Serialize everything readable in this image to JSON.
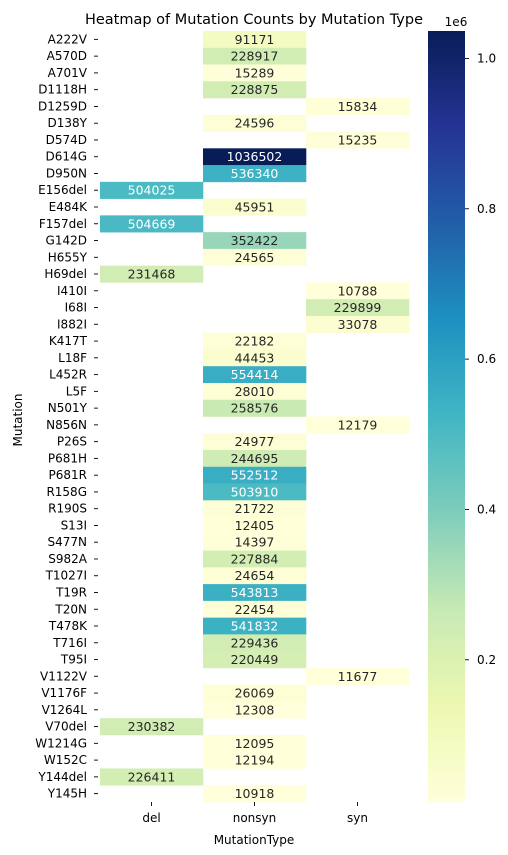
{
  "chart_data": {
    "type": "heatmap",
    "title": "Heatmap of Mutation Counts by Mutation Type",
    "xlabel": "MutationType",
    "ylabel": "Mutation",
    "x_categories": [
      "del",
      "nonsyn",
      "syn"
    ],
    "colormap": "YlGnBu",
    "colorbar": {
      "offset_label": "1e6",
      "ticks": [
        0.2,
        0.4,
        0.6,
        0.8,
        1.0
      ],
      "tick_labels": [
        "0.2",
        "0.4",
        "0.6",
        "0.8",
        "1.0"
      ]
    },
    "rows": [
      {
        "label": "A222V",
        "values": [
          null,
          91171,
          null
        ]
      },
      {
        "label": "A570D",
        "values": [
          null,
          228917,
          null
        ]
      },
      {
        "label": "A701V",
        "values": [
          null,
          15289,
          null
        ]
      },
      {
        "label": "D1118H",
        "values": [
          null,
          228875,
          null
        ]
      },
      {
        "label": "D1259D",
        "values": [
          null,
          null,
          15834
        ]
      },
      {
        "label": "D138Y",
        "values": [
          null,
          24596,
          null
        ]
      },
      {
        "label": "D574D",
        "values": [
          null,
          null,
          15235
        ]
      },
      {
        "label": "D614G",
        "values": [
          null,
          1036502,
          null
        ]
      },
      {
        "label": "D950N",
        "values": [
          null,
          536340,
          null
        ]
      },
      {
        "label": "E156del",
        "values": [
          504025,
          null,
          null
        ]
      },
      {
        "label": "E484K",
        "values": [
          null,
          45951,
          null
        ]
      },
      {
        "label": "F157del",
        "values": [
          504669,
          null,
          null
        ]
      },
      {
        "label": "G142D",
        "values": [
          null,
          352422,
          null
        ]
      },
      {
        "label": "H655Y",
        "values": [
          null,
          24565,
          null
        ]
      },
      {
        "label": "H69del",
        "values": [
          231468,
          null,
          null
        ]
      },
      {
        "label": "I410I",
        "values": [
          null,
          null,
          10788
        ]
      },
      {
        "label": "I68I",
        "values": [
          null,
          null,
          229899
        ]
      },
      {
        "label": "I882I",
        "values": [
          null,
          null,
          33078
        ]
      },
      {
        "label": "K417T",
        "values": [
          null,
          22182,
          null
        ]
      },
      {
        "label": "L18F",
        "values": [
          null,
          44453,
          null
        ]
      },
      {
        "label": "L452R",
        "values": [
          null,
          554414,
          null
        ]
      },
      {
        "label": "L5F",
        "values": [
          null,
          28010,
          null
        ]
      },
      {
        "label": "N501Y",
        "values": [
          null,
          258576,
          null
        ]
      },
      {
        "label": "N856N",
        "values": [
          null,
          null,
          12179
        ]
      },
      {
        "label": "P26S",
        "values": [
          null,
          24977,
          null
        ]
      },
      {
        "label": "P681H",
        "values": [
          null,
          244695,
          null
        ]
      },
      {
        "label": "P681R",
        "values": [
          null,
          552512,
          null
        ]
      },
      {
        "label": "R158G",
        "values": [
          null,
          503910,
          null
        ]
      },
      {
        "label": "R190S",
        "values": [
          null,
          21722,
          null
        ]
      },
      {
        "label": "S13I",
        "values": [
          null,
          12405,
          null
        ]
      },
      {
        "label": "S477N",
        "values": [
          null,
          14397,
          null
        ]
      },
      {
        "label": "S982A",
        "values": [
          null,
          227884,
          null
        ]
      },
      {
        "label": "T1027I",
        "values": [
          null,
          24654,
          null
        ]
      },
      {
        "label": "T19R",
        "values": [
          null,
          543813,
          null
        ]
      },
      {
        "label": "T20N",
        "values": [
          null,
          22454,
          null
        ]
      },
      {
        "label": "T478K",
        "values": [
          null,
          541832,
          null
        ]
      },
      {
        "label": "T716I",
        "values": [
          null,
          229436,
          null
        ]
      },
      {
        "label": "T95I",
        "values": [
          null,
          220449,
          null
        ]
      },
      {
        "label": "V1122V",
        "values": [
          null,
          null,
          11677
        ]
      },
      {
        "label": "V1176F",
        "values": [
          null,
          26069,
          null
        ]
      },
      {
        "label": "V1264L",
        "values": [
          null,
          12308,
          null
        ]
      },
      {
        "label": "V70del",
        "values": [
          230382,
          null,
          null
        ]
      },
      {
        "label": "W1214G",
        "values": [
          null,
          12095,
          null
        ]
      },
      {
        "label": "W152C",
        "values": [
          null,
          12194,
          null
        ]
      },
      {
        "label": "Y144del",
        "values": [
          226411,
          null,
          null
        ]
      },
      {
        "label": "Y145H",
        "values": [
          null,
          10918,
          null
        ]
      }
    ]
  }
}
